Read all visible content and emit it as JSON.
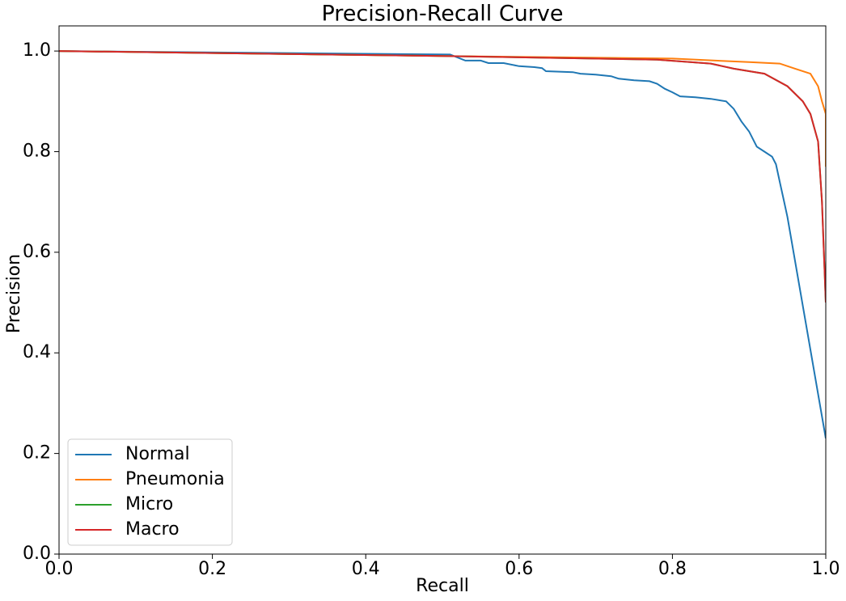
{
  "chart_data": {
    "type": "line",
    "title": "Precision-Recall Curve",
    "x_label": "Recall",
    "y_label": "Precision",
    "xlim": [
      0,
      1
    ],
    "ylim": [
      0,
      1.05
    ],
    "xticks": [
      {
        "value": 0,
        "label": "0.0"
      },
      0.2,
      0.4,
      0.6,
      0.8,
      {
        "value": 1,
        "label": "1.0"
      }
    ],
    "yticks": [
      {
        "value": 0,
        "label": "0.0"
      },
      0.2,
      0.4,
      0.6,
      0.8,
      {
        "value": 1,
        "label": "1.0"
      }
    ],
    "legend": "lower left",
    "series": [
      {
        "name": "Normal",
        "color": "#1f77b4",
        "x": [
          0,
          0.51,
          0.53,
          0.55,
          0.56,
          0.58,
          0.6,
          0.62,
          0.63,
          0.635,
          0.67,
          0.68,
          0.7,
          0.72,
          0.73,
          0.75,
          0.77,
          0.78,
          0.79,
          0.8,
          0.81,
          0.83,
          0.85,
          0.87,
          0.88,
          0.89,
          0.9,
          0.91,
          0.92,
          0.93,
          0.935,
          0.94,
          0.945,
          0.95,
          1.0
        ],
        "values": [
          1.0,
          0.993,
          0.981,
          0.981,
          0.976,
          0.976,
          0.97,
          0.968,
          0.966,
          0.96,
          0.958,
          0.955,
          0.953,
          0.95,
          0.945,
          0.942,
          0.94,
          0.935,
          0.925,
          0.918,
          0.91,
          0.908,
          0.905,
          0.9,
          0.885,
          0.86,
          0.84,
          0.81,
          0.8,
          0.79,
          0.775,
          0.74,
          0.705,
          0.67,
          0.23
        ]
      },
      {
        "name": "Pneumonia",
        "color": "#ff7f0e",
        "x": [
          0,
          0.5,
          0.8,
          0.9,
          0.94,
          0.96,
          0.98,
          0.99,
          0.995,
          1.0,
          1.0
        ],
        "values": [
          1.0,
          0.99,
          0.985,
          0.978,
          0.975,
          0.965,
          0.955,
          0.93,
          0.9,
          0.875,
          0.77
        ]
      },
      {
        "name": "Micro",
        "color": "#2ca02c",
        "x": [
          0,
          0.5,
          0.78,
          0.85,
          0.88,
          0.92,
          0.95,
          0.97,
          0.98,
          0.99,
          0.995,
          1.0
        ],
        "values": [
          1.0,
          0.99,
          0.983,
          0.975,
          0.965,
          0.955,
          0.93,
          0.9,
          0.875,
          0.82,
          0.7,
          0.5
        ]
      },
      {
        "name": "Macro",
        "color": "#d62728",
        "x": [
          0,
          0.5,
          0.78,
          0.85,
          0.88,
          0.92,
          0.95,
          0.97,
          0.98,
          0.99,
          0.995,
          1.0
        ],
        "values": [
          1.0,
          0.99,
          0.983,
          0.975,
          0.965,
          0.955,
          0.93,
          0.9,
          0.875,
          0.82,
          0.7,
          0.5
        ]
      }
    ]
  }
}
